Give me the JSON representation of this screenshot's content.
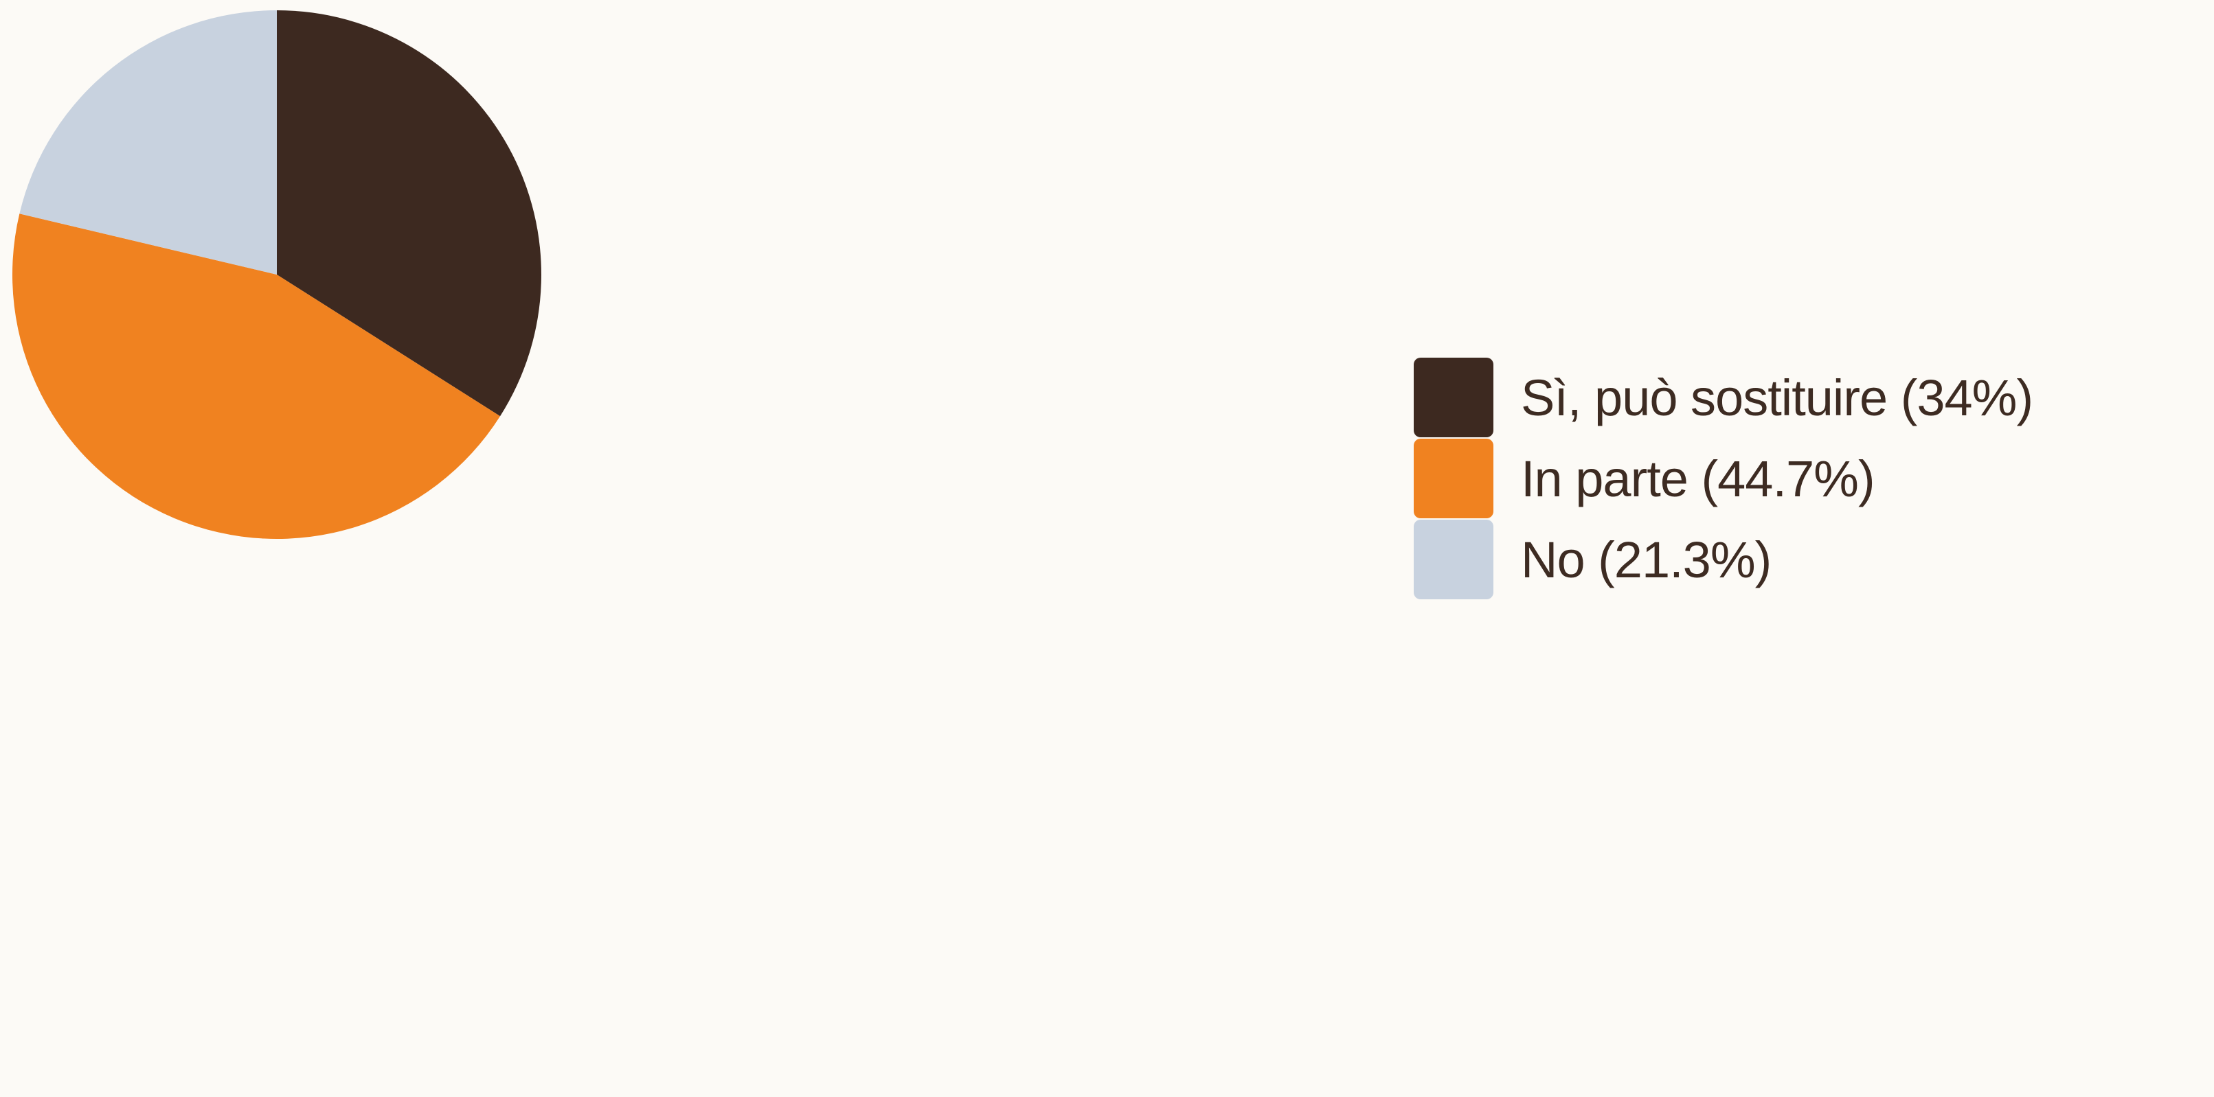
{
  "chart_data": {
    "type": "pie",
    "title": "",
    "start_angle_deg": 0,
    "direction": "clockwise",
    "slices": [
      {
        "label": "Sì, può sostituire (34%)",
        "value": 34,
        "color": "#3d2920"
      },
      {
        "label": "In parte (44.7%)",
        "value": 44.7,
        "color": "#f08220"
      },
      {
        "label": "No (21.3%)",
        "value": 21.3,
        "color": "#c8d2df"
      }
    ],
    "legend_position": "right"
  }
}
